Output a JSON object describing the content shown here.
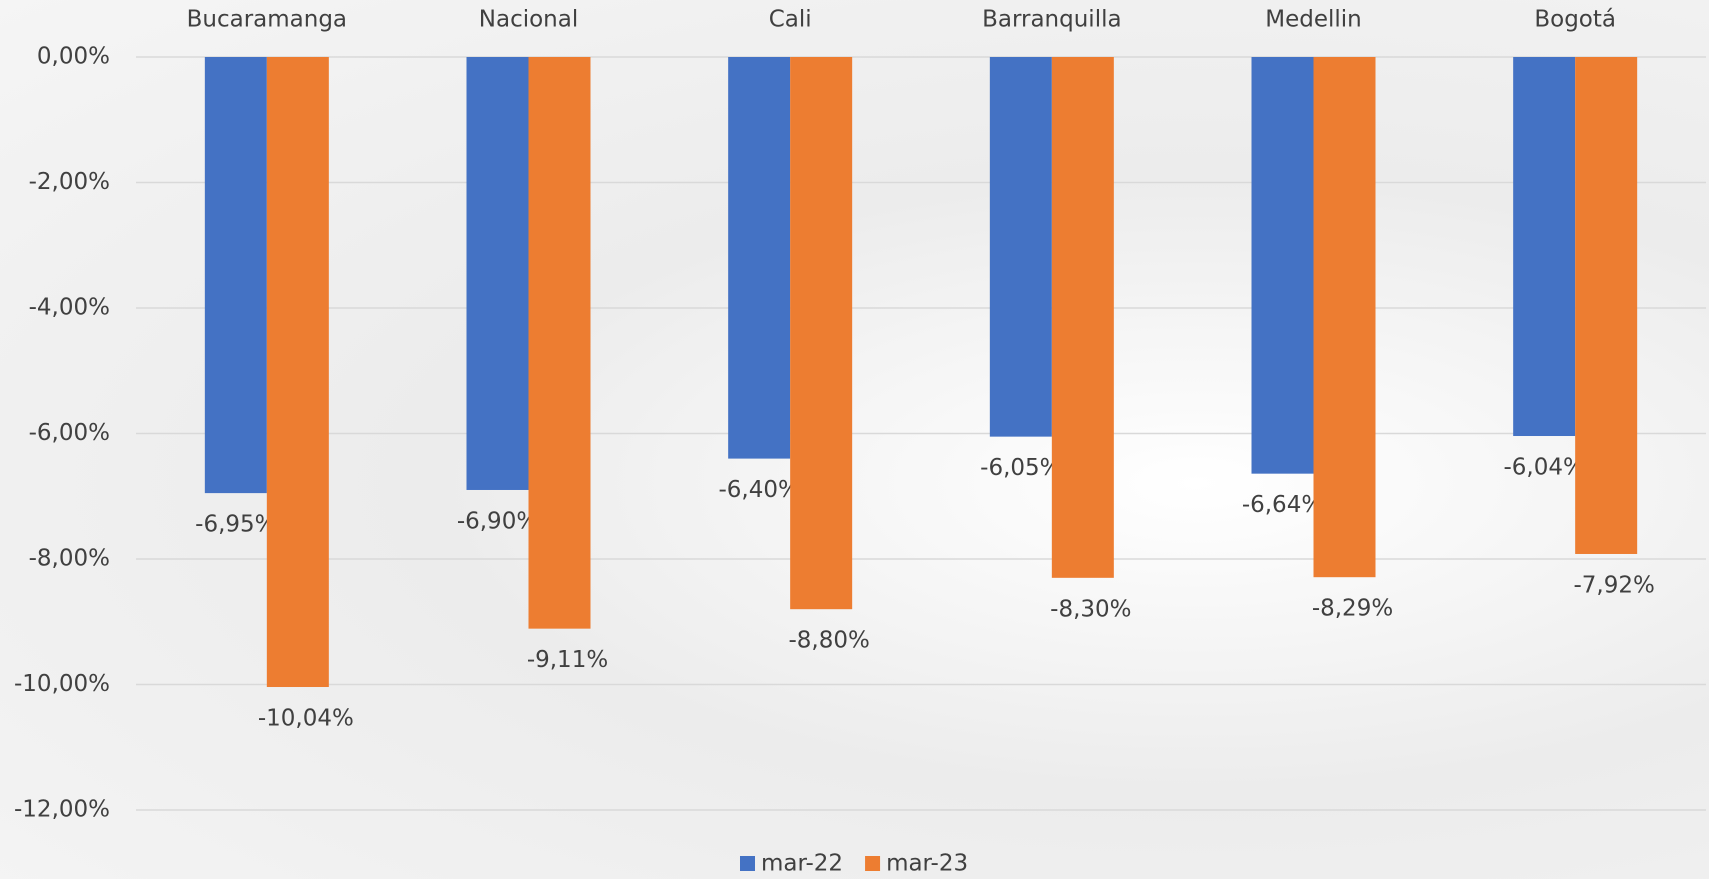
{
  "chart_data": {
    "type": "bar",
    "categories": [
      "Bucaramanga",
      "Nacional",
      "Cali",
      "Barranquilla",
      "Medellin",
      "Bogotá"
    ],
    "series": [
      {
        "name": "mar-22",
        "color": "#4472c4",
        "values": [
          -6.95,
          -6.9,
          -6.4,
          -6.05,
          -6.64,
          -6.04
        ],
        "value_labels": [
          "-6,95%",
          "-6,90%",
          "-6,40%",
          "-6,05%",
          "-6,64%",
          "-6,04%"
        ]
      },
      {
        "name": "mar-23",
        "color": "#ed7d31",
        "values": [
          -10.04,
          -9.11,
          -8.8,
          -8.3,
          -8.29,
          -7.92
        ],
        "value_labels": [
          "-10,04%",
          "-9,11%",
          "-8,80%",
          "-8,30%",
          "-8,29%",
          "-7,92%"
        ]
      }
    ],
    "ylim": [
      -12,
      0
    ],
    "yticks": [
      {
        "value": 0,
        "label": "0,00%"
      },
      {
        "value": -2,
        "label": "-2,00%"
      },
      {
        "value": -4,
        "label": "-4,00%"
      },
      {
        "value": -6,
        "label": "-6,00%"
      },
      {
        "value": -8,
        "label": "-8,00%"
      },
      {
        "value": -10,
        "label": "-10,00%"
      },
      {
        "value": -12,
        "label": "-12,00%"
      }
    ],
    "grid": true,
    "legend": "bottom"
  }
}
